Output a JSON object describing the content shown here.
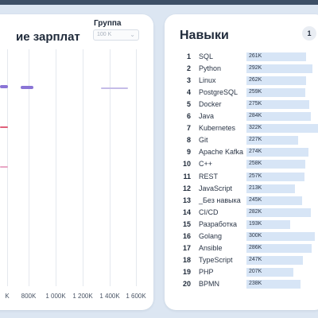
{
  "left_panel": {
    "title": "ие зарплат",
    "group_label": "Группа",
    "group_select_value": "100 K",
    "x_ticks": [
      "K",
      "800K",
      "1 000K",
      "1 200K",
      "1 400K",
      "1 600K"
    ],
    "marks": [
      {
        "kind": "bar-purple",
        "color": "#8a74d6"
      },
      {
        "kind": "bar-purple",
        "color": "#8a74d6"
      },
      {
        "kind": "line-red",
        "color": "#e0607a"
      },
      {
        "kind": "line-pink",
        "color": "#e8a7c6"
      },
      {
        "kind": "line-lavender",
        "color": "#c5bce8"
      }
    ]
  },
  "skills_panel": {
    "title": "Навыки",
    "page": "1",
    "bar_color": "#d7e5f6",
    "items": [
      {
        "rank": "1",
        "name": "SQL",
        "value": "261K",
        "v": 261
      },
      {
        "rank": "2",
        "name": "Python",
        "value": "292K",
        "v": 292
      },
      {
        "rank": "3",
        "name": "Linux",
        "value": "262K",
        "v": 262
      },
      {
        "rank": "4",
        "name": "PostgreSQL",
        "value": "259K",
        "v": 259
      },
      {
        "rank": "5",
        "name": "Docker",
        "value": "275K",
        "v": 275
      },
      {
        "rank": "6",
        "name": "Java",
        "value": "284K",
        "v": 284
      },
      {
        "rank": "7",
        "name": "Kubernetes",
        "value": "322K",
        "v": 322
      },
      {
        "rank": "8",
        "name": "Git",
        "value": "227K",
        "v": 227
      },
      {
        "rank": "9",
        "name": "Apache Kafka",
        "value": "274K",
        "v": 274
      },
      {
        "rank": "10",
        "name": "C++",
        "value": "258K",
        "v": 258
      },
      {
        "rank": "11",
        "name": "REST",
        "value": "257K",
        "v": 257
      },
      {
        "rank": "12",
        "name": "JavaScript",
        "value": "213K",
        "v": 213
      },
      {
        "rank": "13",
        "name": "_Без навыка",
        "value": "245K",
        "v": 245
      },
      {
        "rank": "14",
        "name": "CI/CD",
        "value": "282K",
        "v": 282
      },
      {
        "rank": "15",
        "name": "Разработка",
        "value": "193K",
        "v": 193
      },
      {
        "rank": "16",
        "name": "Golang",
        "value": "300K",
        "v": 300
      },
      {
        "rank": "17",
        "name": "Ansible",
        "value": "286K",
        "v": 286
      },
      {
        "rank": "18",
        "name": "TypeScript",
        "value": "247K",
        "v": 247
      },
      {
        "rank": "19",
        "name": "PHP",
        "value": "207K",
        "v": 207
      },
      {
        "rank": "20",
        "name": "BPMN",
        "value": "238K",
        "v": 238
      }
    ]
  }
}
